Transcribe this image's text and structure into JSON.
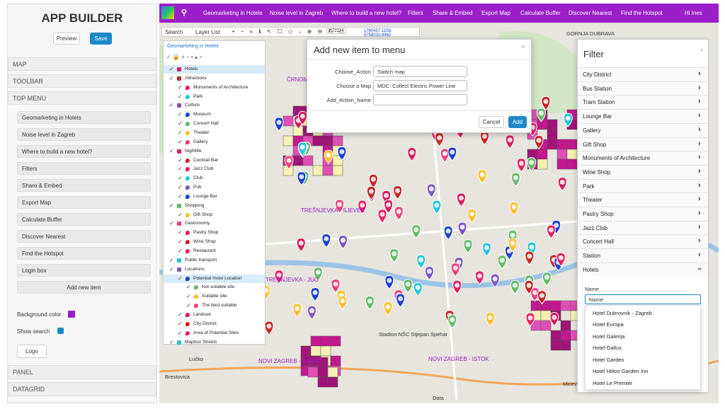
{
  "sidebar": {
    "title": "APP BUILDER",
    "buttons": [
      "Preview",
      "Save"
    ],
    "sections_top": [
      "MAP",
      "TOOLBAR",
      "TOP MENU"
    ],
    "menu_items": [
      "Geomarketing in Hotels",
      "Noise level in Zagreb",
      "Where to build a new hotel?",
      "Filters",
      "Share & Embed",
      "Export Map",
      "Calculate Buffer",
      "Discover Nearest",
      "Find the Hotspot",
      "Login box"
    ],
    "add_button": "Add new item",
    "background_color_label": "Background color",
    "show_search_label": "Show search",
    "logo_button": "Logo",
    "sections_bottom": [
      "PANEL",
      "DATAGRID"
    ]
  },
  "topbar": {
    "menu": [
      "Geomarketing in Hotels",
      "Noise level in Zagreb",
      "Where to build a new hotel?",
      "Filters",
      "Share & Embed",
      "Export Map",
      "Calculate Buffer",
      "Discover Nearest",
      "Find the Hotspot"
    ],
    "user": "Hi Ines"
  },
  "toolbar": {
    "search": "Search",
    "layer_list": "Layer List",
    "scale": "1:72224",
    "coords": "1780457.1158, 5758031.9462"
  },
  "layer_panel": {
    "title": "Geomarketing in Hotels",
    "layers": [
      {
        "label": "Hotels",
        "level": 0
      },
      {
        "label": "Attractions",
        "level": 0
      },
      {
        "label": "Monuments of Architecture",
        "level": 1
      },
      {
        "label": "Park",
        "level": 1
      },
      {
        "label": "Culture",
        "level": 0
      },
      {
        "label": "Museum",
        "level": 1
      },
      {
        "label": "Concert Hall",
        "level": 1
      },
      {
        "label": "Theater",
        "level": 1
      },
      {
        "label": "Gallery",
        "level": 1
      },
      {
        "label": "Nightlife",
        "level": 0
      },
      {
        "label": "Cocktail Bar",
        "level": 1
      },
      {
        "label": "Jazz Club",
        "level": 1
      },
      {
        "label": "Club",
        "level": 1
      },
      {
        "label": "Pub",
        "level": 1
      },
      {
        "label": "Lounge Bar",
        "level": 1
      },
      {
        "label": "Shopping",
        "level": 0
      },
      {
        "label": "Gift Shop",
        "level": 1
      },
      {
        "label": "Gastronomy",
        "level": 0
      },
      {
        "label": "Pastry Shop",
        "level": 1
      },
      {
        "label": "Wine Shop",
        "level": 1
      },
      {
        "label": "Restaurant",
        "level": 1
      },
      {
        "label": "Public transport",
        "level": 0
      },
      {
        "label": "Locations",
        "level": 0
      },
      {
        "label": "Potential Hotel Location",
        "level": 1
      },
      {
        "label": "Not suitable site",
        "level": 2
      },
      {
        "label": "Suitable site",
        "level": 2
      },
      {
        "label": "The best suitable",
        "level": 2
      },
      {
        "label": "Landuse",
        "level": 1
      },
      {
        "label": "City District",
        "level": 1
      },
      {
        "label": "Area of Potential Sites",
        "level": 1
      },
      {
        "label": "Mapbox Streets",
        "level": 0
      }
    ]
  },
  "dialog": {
    "title": "Add new item to menu",
    "fields": [
      {
        "label": "Choose_Action",
        "value": "Switch map"
      },
      {
        "label": "Choose a Map",
        "value": "MDC: Collect Electric Power Line"
      },
      {
        "label": "Add_Action_Name"
      }
    ],
    "cancel": "Cancel",
    "add": "Add"
  },
  "filter": {
    "title": "Filter",
    "items": [
      "City District",
      "Bus Station",
      "Tram Station",
      "Lounge Bar",
      "Gallery",
      "Gift Shop",
      "Monuments of Architecture",
      "Wine Shop",
      "Park",
      "Theater",
      "Pastry Shop",
      "Jazz Club",
      "Concert Hall",
      "Station",
      "Hotels"
    ],
    "name_label": "Name",
    "select_value": "Name",
    "options": [
      "Hotel Dubrovnik - Zagreb",
      "Hotel Europa",
      "Hotel Galerija",
      "Hotel Gallus",
      "Hotel Garden",
      "Hotel Hilton Garden Inn",
      "Hotel Le Premier"
    ]
  },
  "map_labels": [
    "ČRNOMEREC",
    "TREŠNJEVKA - SJEVER",
    "TREŠNJEVKA - JUG",
    "NOVI ZAGREB - ZAPAD",
    "NOVI ZAGREB - ISTOK",
    "Lučko",
    "Brestovica",
    "Mićevec",
    "GORNJA DUBRAVA",
    "Stadion NŠC Stjepan Spehar",
    "Data"
  ]
}
